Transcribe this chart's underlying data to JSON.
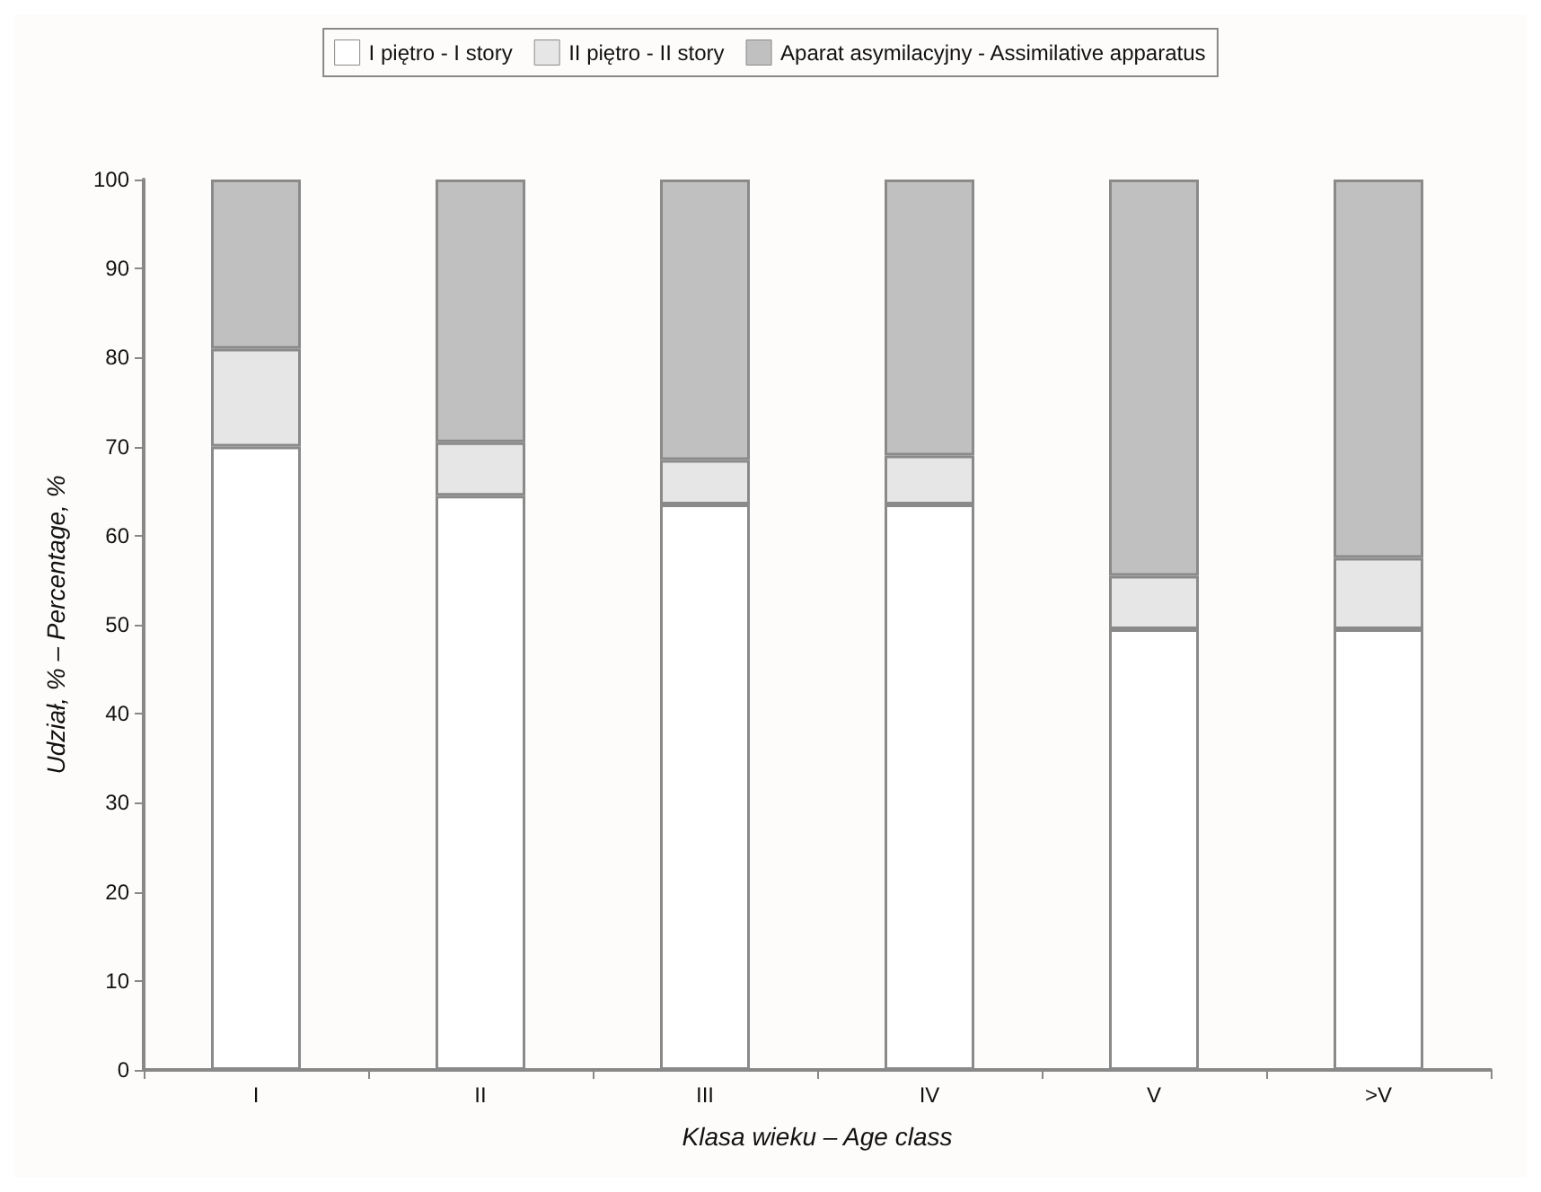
{
  "chart_data": {
    "type": "bar",
    "stacked": true,
    "xlabel": "Klasa wieku – Age class",
    "ylabel": "Udział, % – Percentage, %",
    "categories": [
      "I",
      "II",
      "III",
      "IV",
      "V",
      ">V"
    ],
    "series": [
      {
        "name": "I piętro - I story",
        "color": "#ffffff",
        "values": [
          70,
          64.5,
          63.5,
          63.5,
          49.5,
          49.5
        ]
      },
      {
        "name": "II piętro - II story",
        "color": "#e6e6e6",
        "values": [
          11,
          6,
          5,
          5.5,
          6,
          8
        ]
      },
      {
        "name": "Aparat asymilacyjny - Assimilative apparatus",
        "color": "#c0c0c0",
        "values": [
          19,
          29.5,
          31.5,
          31,
          44.5,
          42.5
        ]
      }
    ],
    "ylim": [
      0,
      100
    ],
    "yticks": [
      0,
      10,
      20,
      30,
      40,
      50,
      60,
      70,
      80,
      90,
      100
    ],
    "grid": false,
    "legend": "top"
  }
}
